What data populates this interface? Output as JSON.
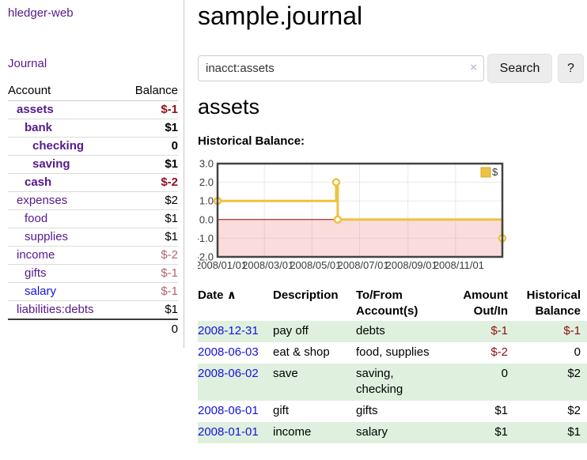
{
  "app": {
    "title": "hledger-web"
  },
  "sidebar": {
    "journal_link": "Journal",
    "table": {
      "account_header": "Account",
      "balance_header": "Balance",
      "rows": [
        {
          "account": "assets",
          "balance": "$-1",
          "level": 1,
          "bold": true,
          "balance_style": "neg-strong"
        },
        {
          "account": "bank",
          "balance": "$1",
          "level": 2,
          "bold": true,
          "balance_style": "pos"
        },
        {
          "account": "checking",
          "balance": "0",
          "level": 3,
          "bold": true,
          "balance_style": "pos"
        },
        {
          "account": "saving",
          "balance": "$1",
          "level": 3,
          "bold": true,
          "balance_style": "pos"
        },
        {
          "account": "cash",
          "balance": "$-2",
          "level": 2,
          "bold": true,
          "balance_style": "neg-strong"
        },
        {
          "account": "expenses",
          "balance": "$2",
          "level": 1,
          "bold": false,
          "balance_style": "pos"
        },
        {
          "account": "food",
          "balance": "$1",
          "level": 2,
          "bold": false,
          "balance_style": "pos"
        },
        {
          "account": "supplies",
          "balance": "$1",
          "level": 2,
          "bold": false,
          "balance_style": "pos"
        },
        {
          "account": "income",
          "balance": "$-2",
          "level": 1,
          "bold": false,
          "balance_style": "neg-soft"
        },
        {
          "account": "gifts",
          "balance": "$-1",
          "level": 2,
          "bold": false,
          "balance_style": "neg-soft"
        },
        {
          "account": "salary",
          "balance": "$-1",
          "level": 2,
          "bold": false,
          "balance_style": "neg-soft",
          "link_color": "blue"
        },
        {
          "account": "liabilities:debts",
          "balance": "$1",
          "level": 1,
          "bold": false,
          "balance_style": "pos"
        }
      ],
      "total": "0"
    }
  },
  "main": {
    "title": "sample.journal",
    "search": {
      "value": "inacct:assets",
      "clear_icon": "×",
      "button": "Search",
      "help_button": "?"
    },
    "account_heading": "assets",
    "chart_label": "Historical Balance:"
  },
  "chart_data": {
    "type": "line",
    "step": true,
    "title": "Historical Balance",
    "series": [
      {
        "name": "$",
        "color": "#edc240",
        "points": [
          [
            "2008-01-01",
            1
          ],
          [
            "2008-06-01",
            2
          ],
          [
            "2008-06-03",
            0
          ],
          [
            "2008-12-31",
            -1
          ]
        ]
      }
    ],
    "x_range": [
      "2008-01-01",
      "2008-12-31"
    ],
    "ylim": [
      -2,
      3
    ],
    "y_ticks": [
      {
        "value": 3,
        "label": "3.0"
      },
      {
        "value": 2,
        "label": "2.0"
      },
      {
        "value": 1,
        "label": "1.0"
      },
      {
        "value": 0,
        "label": "0.0"
      },
      {
        "value": -1,
        "label": "-1.0"
      },
      {
        "value": -2,
        "label": "-2.0"
      }
    ],
    "x_ticks": [
      {
        "date": "2008-01-01",
        "label": "2008/01/01"
      },
      {
        "date": "2008-03-01",
        "label": "2008/03/01"
      },
      {
        "date": "2008-05-01",
        "label": "2008/05/01"
      },
      {
        "date": "2008-07-01",
        "label": "2008/07/01"
      },
      {
        "date": "2008-09-01",
        "label": "2008/09/01"
      },
      {
        "date": "2008-11-01",
        "label": "2008/11/01"
      }
    ],
    "grid": true,
    "legend_position": "top-right",
    "legend": "$",
    "negative_fill": "#fadcdc",
    "zero_line_color": "#a40000"
  },
  "register": {
    "headers": {
      "date": "Date",
      "sort_icon": "∧",
      "description": "Description",
      "tofrom": "To/From Account(s)",
      "amount": "Amount Out/In",
      "balance": "Historical Balance"
    },
    "rows": [
      {
        "date": "2008-12-31",
        "description": "pay off",
        "accounts": "debts",
        "amount": "$-1",
        "amount_neg": true,
        "balance": "$-1",
        "balance_neg": true
      },
      {
        "date": "2008-06-03",
        "description": "eat & shop",
        "accounts": "food, supplies",
        "amount": "$-2",
        "amount_neg": true,
        "balance": "0",
        "balance_neg": false
      },
      {
        "date": "2008-06-02",
        "description": "save",
        "accounts": "saving,\nchecking",
        "amount": "0",
        "amount_neg": false,
        "balance": "$2",
        "balance_neg": false
      },
      {
        "date": "2008-06-01",
        "description": "gift",
        "accounts": "gifts",
        "amount": "$1",
        "amount_neg": false,
        "balance": "$2",
        "balance_neg": false
      },
      {
        "date": "2008-01-01",
        "description": "income",
        "accounts": "salary",
        "amount": "$1",
        "amount_neg": false,
        "balance": "$1",
        "balance_neg": false
      }
    ]
  }
}
